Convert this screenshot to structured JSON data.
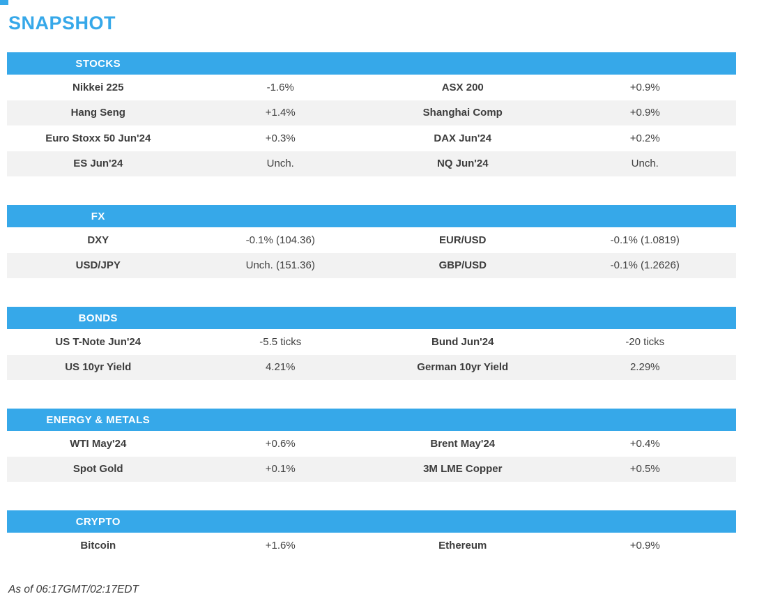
{
  "title": "SNAPSHOT",
  "colors": {
    "accent": "#36a8e9",
    "row_alt": "#f2f2f2",
    "text": "#3d3d3d",
    "header_text": "#ffffff"
  },
  "sections": [
    {
      "label": "STOCKS",
      "rows": [
        {
          "left_name": "Nikkei 225",
          "left_value": "-1.6%",
          "right_name": "ASX 200",
          "right_value": "+0.9%"
        },
        {
          "left_name": "Hang Seng",
          "left_value": "+1.4%",
          "right_name": "Shanghai Comp",
          "right_value": "+0.9%"
        },
        {
          "left_name": "Euro Stoxx 50 Jun'24",
          "left_value": "+0.3%",
          "right_name": "DAX Jun'24",
          "right_value": "+0.2%"
        },
        {
          "left_name": "ES Jun'24",
          "left_value": "Unch.",
          "right_name": "NQ Jun'24",
          "right_value": "Unch."
        }
      ]
    },
    {
      "label": "FX",
      "rows": [
        {
          "left_name": "DXY",
          "left_value": "-0.1% (104.36)",
          "right_name": "EUR/USD",
          "right_value": "-0.1% (1.0819)"
        },
        {
          "left_name": "USD/JPY",
          "left_value": "Unch. (151.36)",
          "right_name": "GBP/USD",
          "right_value": "-0.1% (1.2626)"
        }
      ]
    },
    {
      "label": "BONDS",
      "rows": [
        {
          "left_name": "US T-Note Jun'24",
          "left_value": "-5.5 ticks",
          "right_name": "Bund Jun'24",
          "right_value": "-20 ticks"
        },
        {
          "left_name": "US 10yr Yield",
          "left_value": "4.21%",
          "right_name": "German 10yr Yield",
          "right_value": "2.29%"
        }
      ]
    },
    {
      "label": "ENERGY & METALS",
      "rows": [
        {
          "left_name": "WTI May'24",
          "left_value": "+0.6%",
          "right_name": "Brent May'24",
          "right_value": "+0.4%"
        },
        {
          "left_name": "Spot Gold",
          "left_value": "+0.1%",
          "right_name": "3M LME Copper",
          "right_value": "+0.5%"
        }
      ]
    },
    {
      "label": "CRYPTO",
      "rows": [
        {
          "left_name": "Bitcoin",
          "left_value": "+1.6%",
          "right_name": "Ethereum",
          "right_value": "+0.9%"
        }
      ]
    }
  ],
  "footer": {
    "as_of": "As of 06:17GMT/02:17EDT"
  }
}
